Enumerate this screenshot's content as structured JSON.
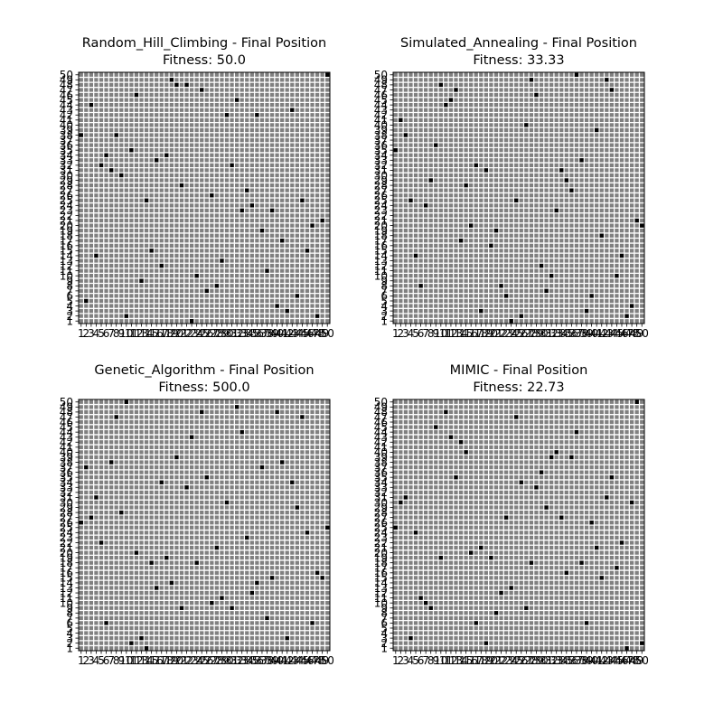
{
  "colors": {
    "background_cell": "#808080",
    "grid_line": "#ffffff",
    "queen": "#000000"
  },
  "chart_data": [
    {
      "type": "heatmap",
      "title": "Random_Hill_Climbing - Final Position",
      "subtitle": "Fitness: 50.0",
      "board_size": 50,
      "x_ticks": [
        1,
        2,
        3,
        4,
        5,
        6,
        7,
        8,
        9,
        10,
        11,
        12,
        13,
        14,
        15,
        16,
        17,
        18,
        19,
        20,
        21,
        22,
        23,
        24,
        25,
        26,
        27,
        28,
        29,
        30,
        31,
        32,
        33,
        34,
        35,
        36,
        37,
        38,
        39,
        40,
        41,
        42,
        43,
        44,
        45,
        46,
        47,
        48,
        49,
        50
      ],
      "y_ticks": [
        1,
        2,
        3,
        4,
        5,
        6,
        7,
        8,
        9,
        10,
        11,
        12,
        13,
        14,
        15,
        16,
        17,
        18,
        19,
        20,
        21,
        22,
        23,
        24,
        25,
        26,
        27,
        28,
        29,
        30,
        31,
        32,
        33,
        34,
        35,
        36,
        37,
        38,
        39,
        40,
        41,
        42,
        43,
        44,
        45,
        46,
        47,
        48,
        49,
        50
      ],
      "queen_rows": [
        38,
        5,
        44,
        14,
        32,
        34,
        31,
        38,
        30,
        2,
        35,
        46,
        9,
        25,
        15,
        33,
        12,
        34,
        49,
        48,
        28,
        48,
        1,
        10,
        47,
        7,
        26,
        8,
        13,
        42,
        32,
        45,
        23,
        27,
        24,
        42,
        19,
        11,
        23,
        4,
        17,
        3,
        43,
        6,
        25,
        15,
        20,
        2,
        21,
        50
      ]
    },
    {
      "type": "heatmap",
      "title": "Simulated_Annealing - Final Position",
      "subtitle": "Fitness: 33.33",
      "board_size": 50,
      "x_ticks": [
        1,
        2,
        3,
        4,
        5,
        6,
        7,
        8,
        9,
        10,
        11,
        12,
        13,
        14,
        15,
        16,
        17,
        18,
        19,
        20,
        21,
        22,
        23,
        24,
        25,
        26,
        27,
        28,
        29,
        30,
        31,
        32,
        33,
        34,
        35,
        36,
        37,
        38,
        39,
        40,
        41,
        42,
        43,
        44,
        45,
        46,
        47,
        48,
        49,
        50
      ],
      "y_ticks": [
        1,
        2,
        3,
        4,
        5,
        6,
        7,
        8,
        9,
        10,
        11,
        12,
        13,
        14,
        15,
        16,
        17,
        18,
        19,
        20,
        21,
        22,
        23,
        24,
        25,
        26,
        27,
        28,
        29,
        30,
        31,
        32,
        33,
        34,
        35,
        36,
        37,
        38,
        39,
        40,
        41,
        42,
        43,
        44,
        45,
        46,
        47,
        48,
        49,
        50
      ],
      "queen_rows": [
        35,
        41,
        38,
        25,
        14,
        8,
        24,
        29,
        36,
        48,
        44,
        45,
        47,
        17,
        28,
        20,
        32,
        3,
        31,
        16,
        19,
        8,
        6,
        1,
        25,
        2,
        40,
        49,
        46,
        12,
        7,
        10,
        23,
        31,
        29,
        27,
        50,
        33,
        3,
        6,
        39,
        18,
        49,
        47,
        10,
        14,
        2,
        4,
        21,
        20
      ]
    },
    {
      "type": "heatmap",
      "title": "Genetic_Algorithm - Final Position",
      "subtitle": "Fitness: 500.0",
      "board_size": 50,
      "x_ticks": [
        1,
        2,
        3,
        4,
        5,
        6,
        7,
        8,
        9,
        10,
        11,
        12,
        13,
        14,
        15,
        16,
        17,
        18,
        19,
        20,
        21,
        22,
        23,
        24,
        25,
        26,
        27,
        28,
        29,
        30,
        31,
        32,
        33,
        34,
        35,
        36,
        37,
        38,
        39,
        40,
        41,
        42,
        43,
        44,
        45,
        46,
        47,
        48,
        49,
        50
      ],
      "y_ticks": [
        1,
        2,
        3,
        4,
        5,
        6,
        7,
        8,
        9,
        10,
        11,
        12,
        13,
        14,
        15,
        16,
        17,
        18,
        19,
        20,
        21,
        22,
        23,
        24,
        25,
        26,
        27,
        28,
        29,
        30,
        31,
        32,
        33,
        34,
        35,
        36,
        37,
        38,
        39,
        40,
        41,
        42,
        43,
        44,
        45,
        46,
        47,
        48,
        49,
        50
      ],
      "queen_rows": [
        26,
        37,
        27,
        31,
        22,
        6,
        38,
        47,
        28,
        50,
        2,
        20,
        3,
        1,
        18,
        13,
        34,
        19,
        14,
        39,
        9,
        33,
        43,
        18,
        48,
        35,
        10,
        21,
        11,
        30,
        9,
        49,
        44,
        23,
        12,
        14,
        37,
        7,
        15,
        48,
        38,
        3,
        34,
        29,
        47,
        24,
        6,
        16,
        15,
        25
      ]
    },
    {
      "type": "heatmap",
      "title": "MIMIC - Final Position",
      "subtitle": "Fitness: 22.73",
      "board_size": 50,
      "x_ticks": [
        1,
        2,
        3,
        4,
        5,
        6,
        7,
        8,
        9,
        10,
        11,
        12,
        13,
        14,
        15,
        16,
        17,
        18,
        19,
        20,
        21,
        22,
        23,
        24,
        25,
        26,
        27,
        28,
        29,
        30,
        31,
        32,
        33,
        34,
        35,
        36,
        37,
        38,
        39,
        40,
        41,
        42,
        43,
        44,
        45,
        46,
        47,
        48,
        49,
        50
      ],
      "y_ticks": [
        1,
        2,
        3,
        4,
        5,
        6,
        7,
        8,
        9,
        10,
        11,
        12,
        13,
        14,
        15,
        16,
        17,
        18,
        19,
        20,
        21,
        22,
        23,
        24,
        25,
        26,
        27,
        28,
        29,
        30,
        31,
        32,
        33,
        34,
        35,
        36,
        37,
        38,
        39,
        40,
        41,
        42,
        43,
        44,
        45,
        46,
        47,
        48,
        49,
        50
      ],
      "queen_rows": [
        25,
        30,
        31,
        3,
        24,
        11,
        10,
        9,
        45,
        19,
        48,
        43,
        35,
        42,
        40,
        20,
        6,
        21,
        2,
        19,
        8,
        12,
        27,
        13,
        47,
        34,
        9,
        18,
        33,
        36,
        29,
        39,
        40,
        27,
        16,
        39,
        44,
        18,
        6,
        26,
        21,
        15,
        31,
        35,
        17,
        22,
        1,
        30,
        50,
        2
      ]
    }
  ]
}
